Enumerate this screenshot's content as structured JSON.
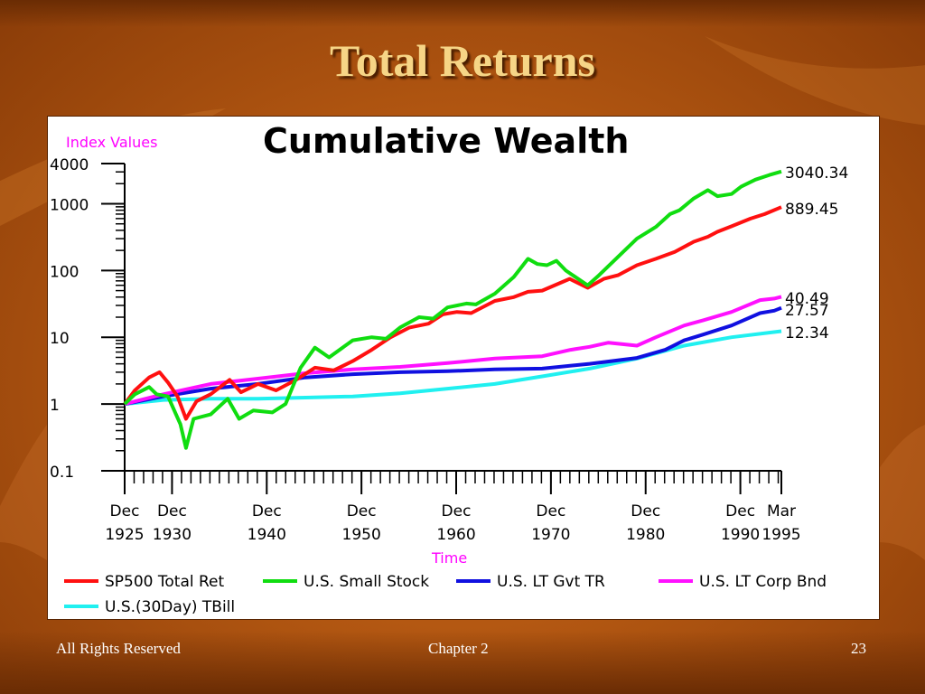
{
  "slide": {
    "title": "Total Returns",
    "footer_left": "All Rights Reserved",
    "footer_center": "Chapter 2",
    "page_number": "23"
  },
  "colors": {
    "title_text": "#f6d586",
    "background": "#b45812",
    "pink_label": "#ff00ff"
  },
  "chart_data": {
    "type": "line",
    "title": "Cumulative Wealth",
    "ylabel": "Index Values",
    "xlabel": "Time",
    "y_scale": "log",
    "ylim": [
      0.1,
      4000
    ],
    "y_ticks": [
      {
        "value": 4000,
        "label": "4000"
      },
      {
        "value": 1000,
        "label": "1000"
      },
      {
        "value": 100,
        "label": "100"
      },
      {
        "value": 10,
        "label": "10"
      },
      {
        "value": 1,
        "label": "1"
      },
      {
        "value": 0.1,
        "label": "0.1"
      }
    ],
    "x_range": [
      1925.92,
      1995.25
    ],
    "x_ticks": [
      {
        "value": 1925.92,
        "line1": "Dec",
        "line2": "1925"
      },
      {
        "value": 1930.92,
        "line1": "Dec",
        "line2": "1930"
      },
      {
        "value": 1940.92,
        "line1": "Dec",
        "line2": "1940"
      },
      {
        "value": 1950.92,
        "line1": "Dec",
        "line2": "1950"
      },
      {
        "value": 1960.92,
        "line1": "Dec",
        "line2": "1960"
      },
      {
        "value": 1970.92,
        "line1": "Dec",
        "line2": "1970"
      },
      {
        "value": 1980.92,
        "line1": "Dec",
        "line2": "1980"
      },
      {
        "value": 1990.92,
        "line1": "Dec",
        "line2": "1990"
      },
      {
        "value": 1995.25,
        "line1": "Mar",
        "line2": "1995"
      }
    ],
    "grid": false,
    "legend_position": "bottom",
    "series": [
      {
        "name": "SP500 Total Ret",
        "color": "#ff1010",
        "end_label": "889.45",
        "points": [
          [
            1925.92,
            1
          ],
          [
            1927,
            1.6
          ],
          [
            1928.5,
            2.5
          ],
          [
            1929.6,
            3
          ],
          [
            1930.5,
            2.1
          ],
          [
            1931.5,
            1.3
          ],
          [
            1932.4,
            0.6
          ],
          [
            1933.5,
            1.1
          ],
          [
            1935,
            1.4
          ],
          [
            1937,
            2.3
          ],
          [
            1938.2,
            1.5
          ],
          [
            1940,
            2
          ],
          [
            1941.9,
            1.6
          ],
          [
            1944,
            2.3
          ],
          [
            1946,
            3.5
          ],
          [
            1948,
            3.2
          ],
          [
            1950,
            4.4
          ],
          [
            1952,
            6.5
          ],
          [
            1954,
            10
          ],
          [
            1956,
            14
          ],
          [
            1958,
            16
          ],
          [
            1959.5,
            22
          ],
          [
            1961,
            24
          ],
          [
            1962.5,
            23
          ],
          [
            1965,
            35
          ],
          [
            1967,
            40
          ],
          [
            1968.5,
            48
          ],
          [
            1970,
            50
          ],
          [
            1972.9,
            75
          ],
          [
            1974.8,
            55
          ],
          [
            1976.5,
            75
          ],
          [
            1978,
            85
          ],
          [
            1980,
            120
          ],
          [
            1982,
            150
          ],
          [
            1984,
            190
          ],
          [
            1986,
            270
          ],
          [
            1987.5,
            320
          ],
          [
            1988.5,
            380
          ],
          [
            1990,
            460
          ],
          [
            1992,
            600
          ],
          [
            1993.5,
            700
          ],
          [
            1995.25,
            889.45
          ]
        ]
      },
      {
        "name": "U.S. Small Stock",
        "color": "#10dd10",
        "end_label": "3040.34",
        "points": [
          [
            1925.92,
            1
          ],
          [
            1927,
            1.4
          ],
          [
            1928.5,
            1.8
          ],
          [
            1929.3,
            1.4
          ],
          [
            1930.5,
            1.3
          ],
          [
            1931.8,
            0.5
          ],
          [
            1932.4,
            0.22
          ],
          [
            1933.2,
            0.6
          ],
          [
            1935,
            0.7
          ],
          [
            1936.8,
            1.2
          ],
          [
            1938,
            0.6
          ],
          [
            1939.5,
            0.8
          ],
          [
            1941.5,
            0.75
          ],
          [
            1942.9,
            1
          ],
          [
            1944.5,
            3.5
          ],
          [
            1946,
            7
          ],
          [
            1947.5,
            5
          ],
          [
            1950,
            9
          ],
          [
            1952,
            10
          ],
          [
            1953.5,
            9.5
          ],
          [
            1955,
            14
          ],
          [
            1957,
            20
          ],
          [
            1958.5,
            19
          ],
          [
            1960,
            28
          ],
          [
            1962,
            32
          ],
          [
            1963,
            31
          ],
          [
            1965,
            45
          ],
          [
            1967,
            80
          ],
          [
            1968.5,
            150
          ],
          [
            1969.5,
            125
          ],
          [
            1970.5,
            120
          ],
          [
            1971.5,
            140
          ],
          [
            1972.5,
            100
          ],
          [
            1974.8,
            60
          ],
          [
            1976,
            85
          ],
          [
            1978,
            160
          ],
          [
            1980,
            300
          ],
          [
            1982,
            450
          ],
          [
            1983.5,
            700
          ],
          [
            1984.5,
            800
          ],
          [
            1986,
            1200
          ],
          [
            1987.5,
            1600
          ],
          [
            1988.5,
            1300
          ],
          [
            1990,
            1400
          ],
          [
            1991,
            1800
          ],
          [
            1992.5,
            2300
          ],
          [
            1994,
            2700
          ],
          [
            1995.25,
            3040.34
          ]
        ]
      },
      {
        "name": "U.S. LT Gvt TR",
        "color": "#1010e0",
        "end_label": "27.57",
        "points": [
          [
            1925.92,
            1
          ],
          [
            1930,
            1.3
          ],
          [
            1935,
            1.7
          ],
          [
            1940,
            2
          ],
          [
            1945,
            2.5
          ],
          [
            1950,
            2.8
          ],
          [
            1955,
            3
          ],
          [
            1960,
            3.1
          ],
          [
            1965,
            3.3
          ],
          [
            1970,
            3.4
          ],
          [
            1975,
            4
          ],
          [
            1980,
            4.9
          ],
          [
            1983,
            6.5
          ],
          [
            1985,
            9
          ],
          [
            1987,
            11
          ],
          [
            1990,
            15
          ],
          [
            1993,
            23
          ],
          [
            1994.5,
            25
          ],
          [
            1995.25,
            27.57
          ]
        ]
      },
      {
        "name": "U.S. LT Corp Bnd",
        "color": "#ff10ff",
        "end_label": "40.49",
        "points": [
          [
            1925.92,
            1
          ],
          [
            1930,
            1.4
          ],
          [
            1935,
            2
          ],
          [
            1940,
            2.4
          ],
          [
            1945,
            2.9
          ],
          [
            1950,
            3.3
          ],
          [
            1955,
            3.6
          ],
          [
            1960,
            4.1
          ],
          [
            1965,
            4.8
          ],
          [
            1970,
            5.2
          ],
          [
            1973,
            6.5
          ],
          [
            1975,
            7.2
          ],
          [
            1977,
            8.3
          ],
          [
            1980,
            7.5
          ],
          [
            1982,
            10
          ],
          [
            1985,
            15
          ],
          [
            1987,
            18
          ],
          [
            1990,
            24
          ],
          [
            1993,
            36
          ],
          [
            1994.5,
            38
          ],
          [
            1995.25,
            40.49
          ]
        ]
      },
      {
        "name": "U.S.(30Day) TBill",
        "color": "#20f0f0",
        "end_label": "12.34",
        "points": [
          [
            1925.92,
            1
          ],
          [
            1930,
            1.15
          ],
          [
            1935,
            1.2
          ],
          [
            1940,
            1.2
          ],
          [
            1945,
            1.25
          ],
          [
            1950,
            1.3
          ],
          [
            1955,
            1.45
          ],
          [
            1960,
            1.7
          ],
          [
            1965,
            2
          ],
          [
            1970,
            2.6
          ],
          [
            1975,
            3.4
          ],
          [
            1980,
            4.8
          ],
          [
            1985,
            7.5
          ],
          [
            1990,
            10
          ],
          [
            1995.25,
            12.34
          ]
        ]
      }
    ]
  }
}
